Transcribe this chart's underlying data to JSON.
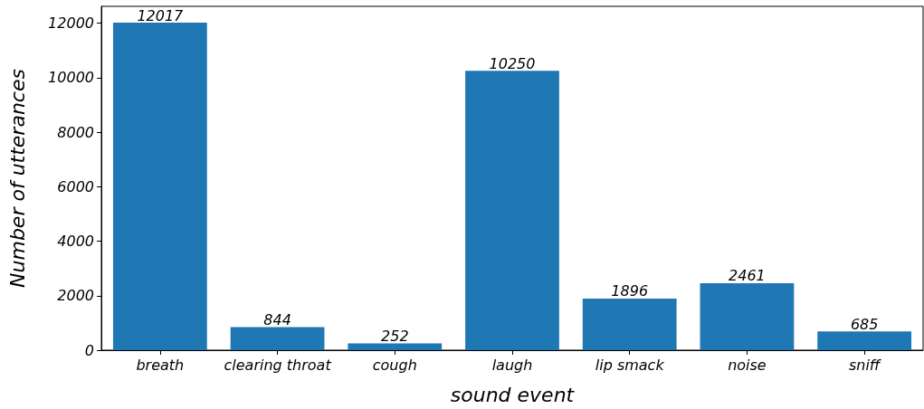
{
  "chart_data": {
    "type": "bar",
    "xlabel": "sound event",
    "ylabel": "Number of utterances",
    "categories": [
      "breath",
      "clearing throat",
      "cough",
      "laugh",
      "lip smack",
      "noise",
      "sniff"
    ],
    "values": [
      12017,
      844,
      252,
      10250,
      1896,
      2461,
      685
    ],
    "color": "#1f77b4",
    "ylim": [
      0,
      12618
    ],
    "yticks": [
      0,
      2000,
      4000,
      6000,
      8000,
      10000,
      12000
    ],
    "data_labels": true,
    "grid": false
  }
}
